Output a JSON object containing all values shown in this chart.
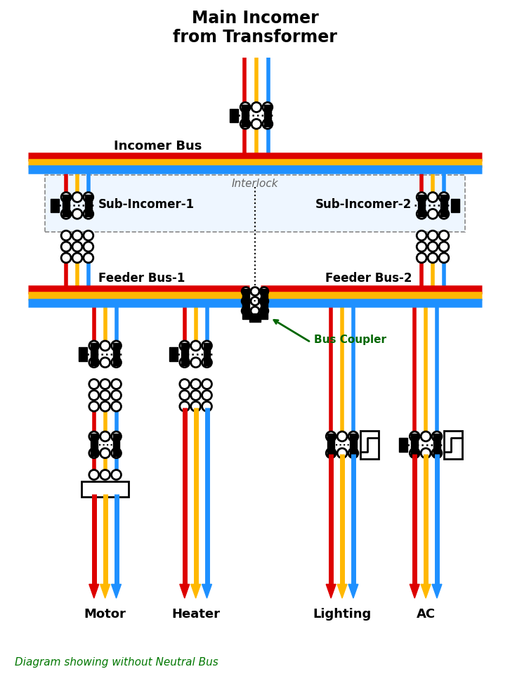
{
  "labels": {
    "title": "Main Incomer\nfrom Transformer",
    "subtitle": "Diagram showing without Neutral Bus",
    "incomer_bus": "Incomer Bus",
    "interlock": "Interlock",
    "sub_incomer1": "Sub-Incomer-1",
    "sub_incomer2": "Sub-Incomer-2",
    "feeder_bus1": "Feeder Bus-1",
    "feeder_bus2": "Feeder Bus-2",
    "bus_coupler": "Bus Coupler",
    "motor": "Motor",
    "heater": "Heater",
    "lighting": "Lighting",
    "ac": "AC"
  },
  "colors": {
    "red": "#DD0000",
    "yellow": "#FFB800",
    "blue": "#1E90FF",
    "black": "#000000",
    "green_label": "#007700",
    "bg": "#FFFFFF"
  },
  "fig_width": 7.26,
  "fig_height": 9.7,
  "dpi": 100
}
